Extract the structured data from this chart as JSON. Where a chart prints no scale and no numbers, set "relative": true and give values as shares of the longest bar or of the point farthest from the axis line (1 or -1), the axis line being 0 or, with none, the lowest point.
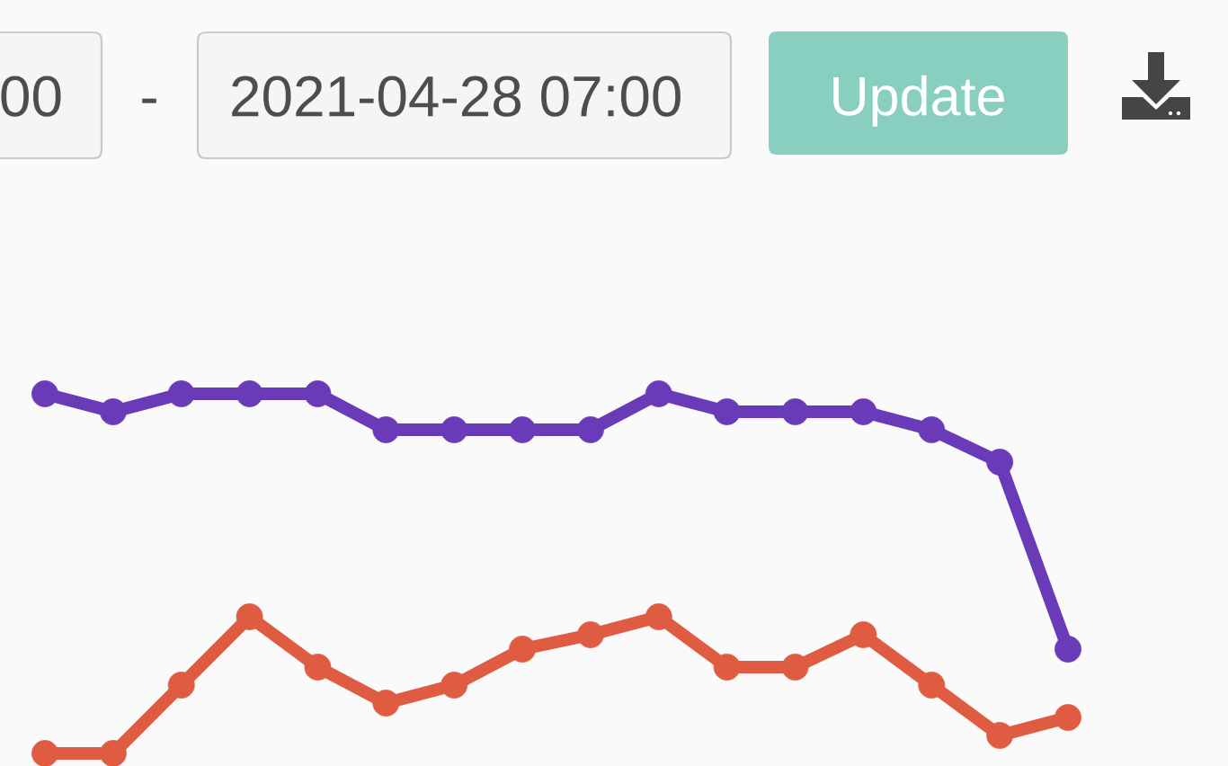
{
  "chart_data": {
    "type": "line",
    "relative": true,
    "categories": [
      null,
      null,
      null,
      null,
      null,
      null,
      null,
      null,
      null,
      null,
      null,
      null,
      null,
      null,
      null,
      null
    ],
    "series": [
      {
        "color": "#6a3bb8",
        "values": [
          1.0,
          0.95,
          1.0,
          1.0,
          1.0,
          0.9,
          0.9,
          0.9,
          0.9,
          1.0,
          0.95,
          0.95,
          0.95,
          0.9,
          0.81,
          0.29
        ]
      },
      {
        "color": "#df5c42",
        "values": [
          0,
          0,
          0.19,
          0.38,
          0.24,
          0.14,
          0.19,
          0.29,
          0.33,
          0.38,
          0.24,
          0.24,
          0.33,
          0.19,
          0.05,
          0.1
        ]
      }
    ],
    "marker": "circle",
    "line_style": "solid",
    "annotations": [
      "00",
      "-",
      "2021-04-28 07:00",
      "Update"
    ]
  }
}
